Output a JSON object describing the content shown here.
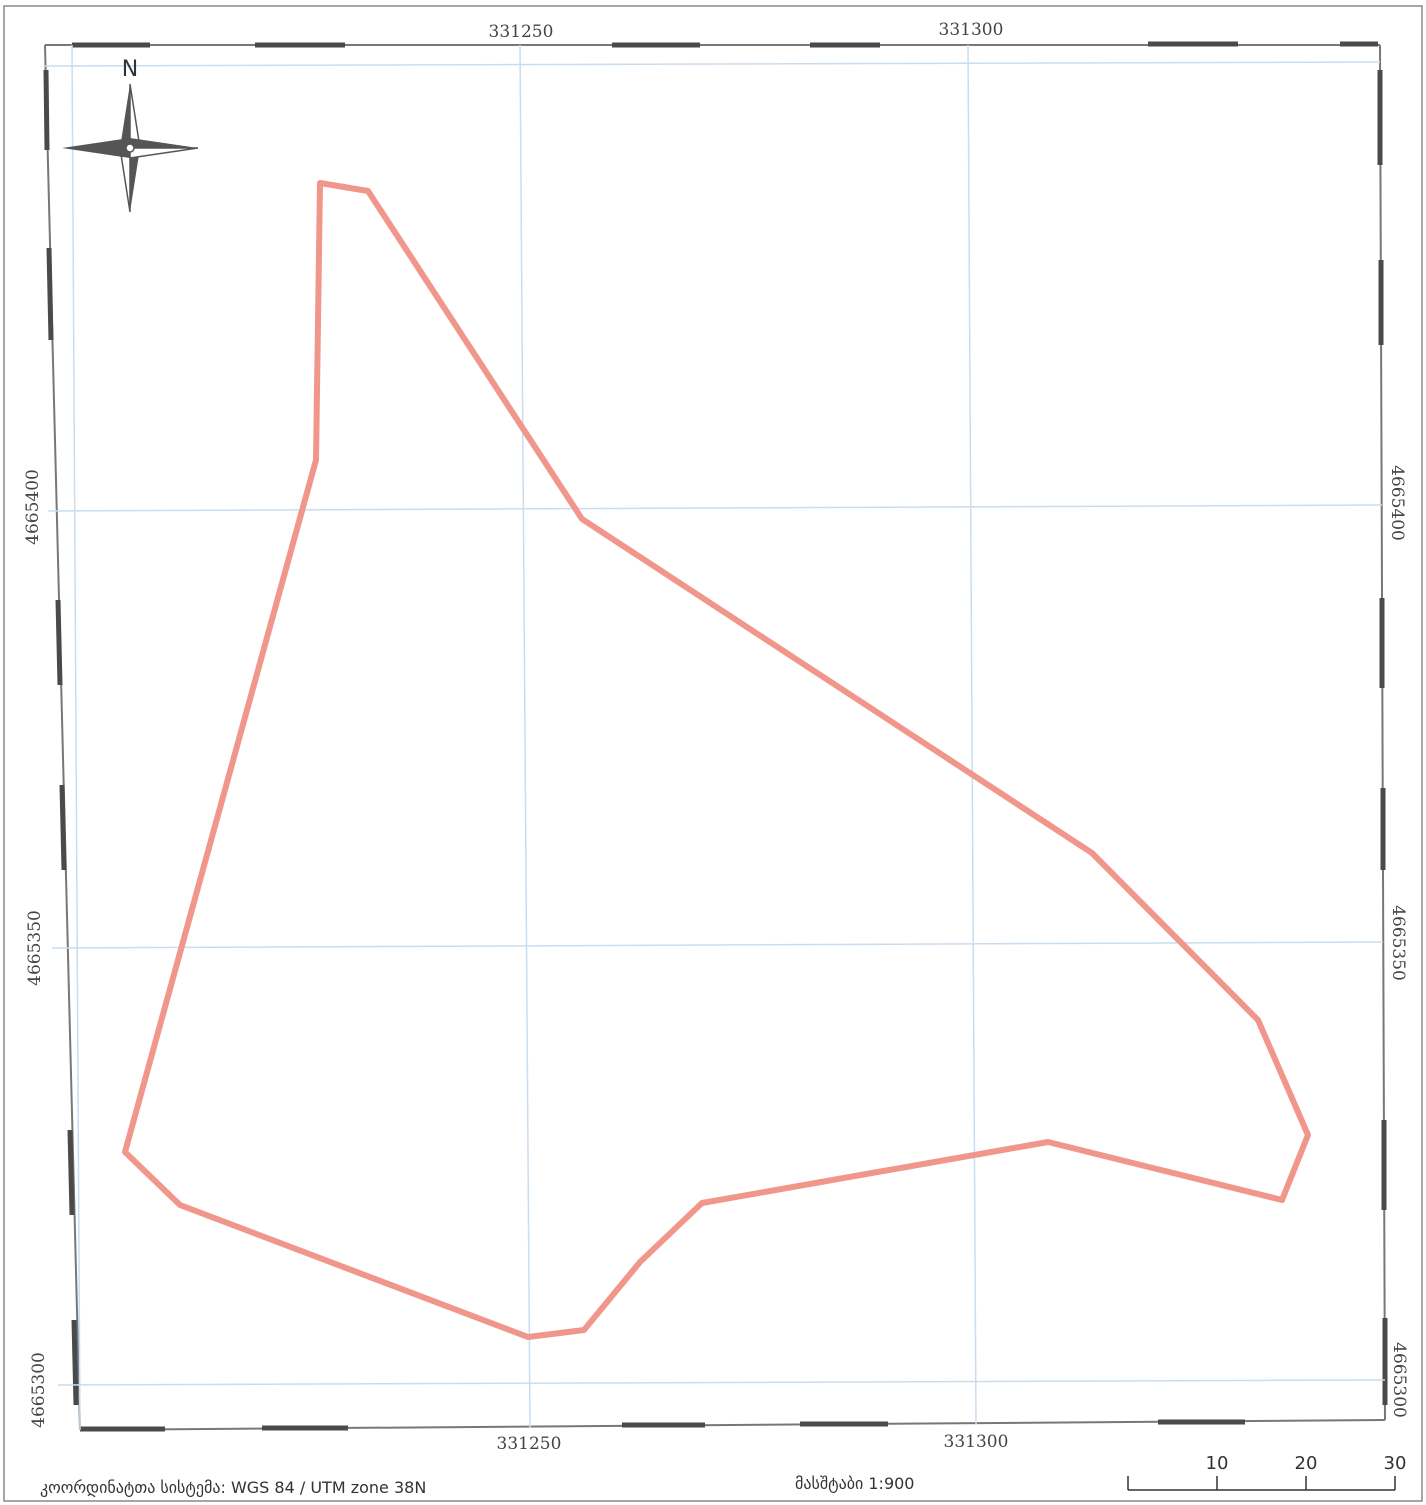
{
  "map": {
    "grid": {
      "x_labels_top": [
        "331250",
        "331300"
      ],
      "x_labels_bottom": [
        "331250",
        "331300"
      ],
      "y_labels_left": [
        "4665400",
        "4665350",
        "4665300"
      ],
      "y_labels_right": [
        "4665400",
        "4665350",
        "4665300"
      ],
      "grid_color": "#c8ddf0"
    },
    "north_arrow": {
      "label": "N"
    },
    "parcel": {
      "outline_color": "#f0968a"
    }
  },
  "footer": {
    "crs": "კოორდინატთა სისტემა: WGS 84 / UTM zone 38N",
    "scale": "მასშტაბი 1:900"
  },
  "scale_bar": {
    "labels": [
      "10",
      "20",
      "30"
    ]
  },
  "colors": {
    "frame": "#555555",
    "dash": "#4a4a4a"
  }
}
